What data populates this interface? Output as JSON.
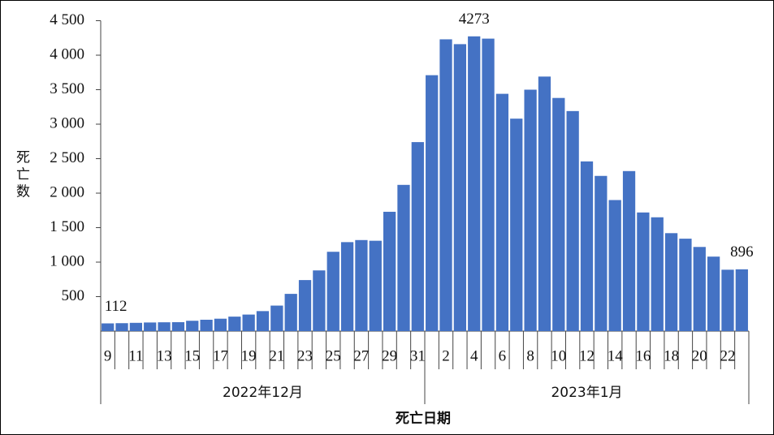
{
  "chart_data": {
    "type": "bar",
    "x_label": "死亡日期",
    "y_label": "死亡数",
    "groups": [
      "2022年12月",
      "2023年1月"
    ],
    "categories": [
      "9",
      null,
      "11",
      null,
      "13",
      null,
      "15",
      null,
      "17",
      null,
      "19",
      null,
      "21",
      null,
      "23",
      null,
      "25",
      null,
      "27",
      null,
      "29",
      null,
      "31",
      null,
      "2",
      null,
      "4",
      null,
      "6",
      null,
      "8",
      null,
      "10",
      null,
      "12",
      null,
      "14",
      null,
      "16",
      null,
      "18",
      null,
      "20",
      null,
      "22",
      null
    ],
    "values": [
      112,
      115,
      120,
      125,
      128,
      130,
      150,
      165,
      180,
      210,
      240,
      290,
      370,
      540,
      740,
      880,
      1150,
      1290,
      1320,
      1310,
      1730,
      2120,
      2740,
      3710,
      4230,
      4160,
      4273,
      4240,
      3440,
      3080,
      3500,
      3690,
      3380,
      3190,
      2460,
      2250,
      1900,
      2320,
      1720,
      1650,
      1420,
      1340,
      1220,
      1080,
      890,
      896
    ],
    "value_labels": [
      "112",
      null,
      null,
      null,
      null,
      null,
      null,
      null,
      null,
      null,
      null,
      null,
      null,
      null,
      null,
      null,
      null,
      null,
      null,
      null,
      null,
      null,
      null,
      null,
      null,
      null,
      "4273",
      null,
      null,
      null,
      null,
      null,
      null,
      null,
      null,
      null,
      null,
      null,
      null,
      null,
      null,
      null,
      null,
      null,
      null,
      "896"
    ],
    "color": "#4472c4",
    "ylim": [
      0,
      4500
    ],
    "yticks": [
      500,
      {
        "value": 1000,
        "label": "1 000"
      },
      {
        "value": 1500,
        "label": "1 500"
      },
      {
        "value": 2000,
        "label": "2 000"
      },
      {
        "value": 2500,
        "label": "2 500"
      },
      {
        "value": 3000,
        "label": "3 000"
      },
      {
        "value": 3500,
        "label": "3 500"
      },
      {
        "value": 4000,
        "label": "4 000"
      },
      {
        "value": 4500,
        "label": "4 500"
      }
    ]
  }
}
